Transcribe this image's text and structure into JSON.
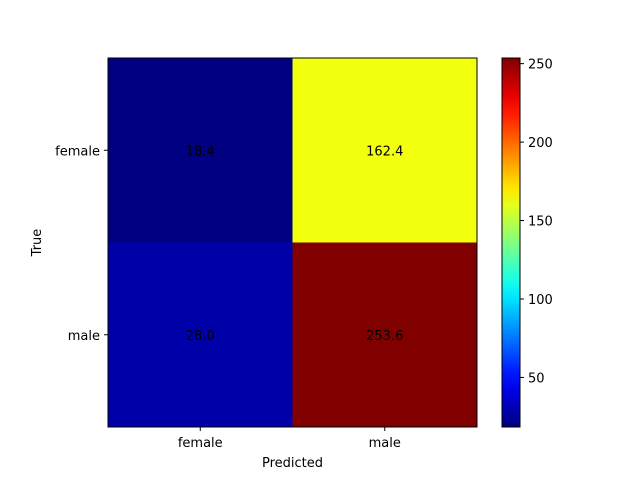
{
  "chart_data": {
    "type": "heatmap",
    "title": "",
    "xlabel": "Predicted",
    "ylabel": "True",
    "x_categories": [
      "female",
      "male"
    ],
    "y_categories": [
      "female",
      "male"
    ],
    "values": [
      [
        18.4,
        162.4
      ],
      [
        28.0,
        253.6
      ]
    ],
    "cell_labels": [
      [
        "18.4",
        "162.4"
      ],
      [
        "28.0",
        "253.6"
      ]
    ],
    "colormap": "jet",
    "colorbar": {
      "range": [
        18.4,
        253.6
      ],
      "ticks": [
        50,
        100,
        150,
        200,
        250
      ],
      "tick_labels": [
        "50",
        "100",
        "150",
        "200",
        "250"
      ]
    },
    "grid": false
  }
}
